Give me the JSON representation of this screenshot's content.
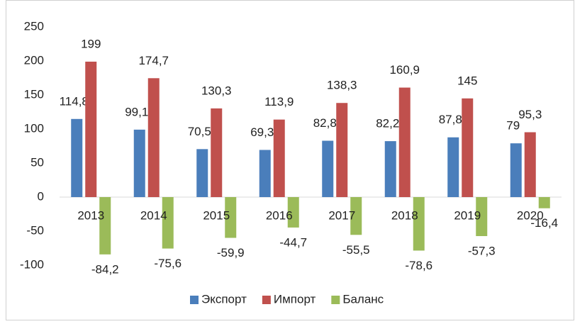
{
  "chart_data": {
    "type": "bar",
    "categories": [
      "2013",
      "2014",
      "2015",
      "2016",
      "2017",
      "2018",
      "2019",
      "2020"
    ],
    "series": [
      {
        "name": "Экспорт",
        "color": "#4a7ebb",
        "values": [
          114.8,
          99.1,
          70.5,
          69.3,
          82.8,
          82.2,
          87.8,
          79
        ],
        "value_labels": [
          "114,8",
          "99,1",
          "70,5",
          "69,3",
          "82,8",
          "82,2",
          "87,8",
          "79"
        ]
      },
      {
        "name": "Импорт",
        "color": "#c0504d",
        "values": [
          199,
          174.7,
          130.3,
          113.9,
          138.3,
          160.9,
          145,
          95.3
        ],
        "value_labels": [
          "199",
          "174,7",
          "130,3",
          "113,9",
          "138,3",
          "160,9",
          "145",
          "95,3"
        ]
      },
      {
        "name": "Баланс",
        "color": "#9bbb59",
        "values": [
          -84.2,
          -75.6,
          -59.9,
          -44.7,
          -55.5,
          -78.6,
          -57.3,
          -16.4
        ],
        "value_labels": [
          "-84,2",
          "-75,6",
          "-59,9",
          "-44,7",
          "-55,5",
          "-78,6",
          "-57,3",
          "-16,4"
        ]
      }
    ],
    "ylim": [
      -100,
      250
    ],
    "yticks": [
      -100,
      -50,
      0,
      50,
      100,
      150,
      200,
      250
    ],
    "grid": false,
    "legend": "bottom"
  }
}
